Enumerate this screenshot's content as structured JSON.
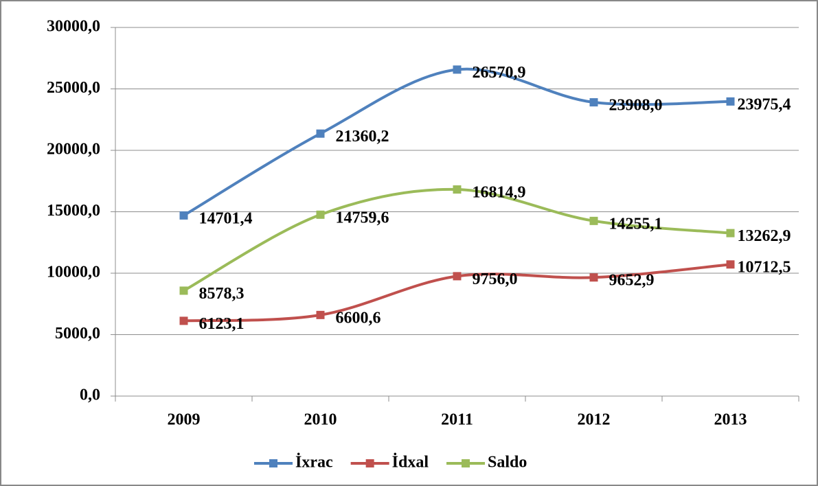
{
  "chart_data": {
    "type": "line",
    "categories": [
      "2009",
      "2010",
      "2011",
      "2012",
      "2013"
    ],
    "series": [
      {
        "name": "İxrac",
        "color": "#4f81bd",
        "values": [
          14701.4,
          21360.2,
          26570.9,
          23908.0,
          23975.4
        ],
        "value_labels": [
          "14701,4",
          "21360,2",
          "26570,9",
          "23908,0",
          "23975,4"
        ]
      },
      {
        "name": "İdxal",
        "color": "#c0504d",
        "values": [
          6123.1,
          6600.6,
          9756.0,
          9652.9,
          10712.5
        ],
        "value_labels": [
          "6123,1",
          "6600,6",
          "9756,0",
          "9652,9",
          "10712,5"
        ]
      },
      {
        "name": "Saldo",
        "color": "#9bbb59",
        "values": [
          8578.3,
          14759.6,
          16814.9,
          14255.1,
          13262.9
        ],
        "value_labels": [
          "8578,3",
          "14759,6",
          "16814,9",
          "14255,1",
          "13262,9"
        ]
      }
    ],
    "ylim": [
      0,
      30000
    ],
    "yticks": [
      {
        "value": 0,
        "label": "0,0"
      },
      {
        "value": 5000,
        "label": "5000,0"
      },
      {
        "value": 10000,
        "label": "10000,0"
      },
      {
        "value": 15000,
        "label": "15000,0"
      },
      {
        "value": 20000,
        "label": "20000,0"
      },
      {
        "value": 25000,
        "label": "25000,0"
      },
      {
        "value": 30000,
        "label": "30000,0"
      }
    ],
    "grid": true,
    "smooth": true,
    "legend": "bottom"
  }
}
